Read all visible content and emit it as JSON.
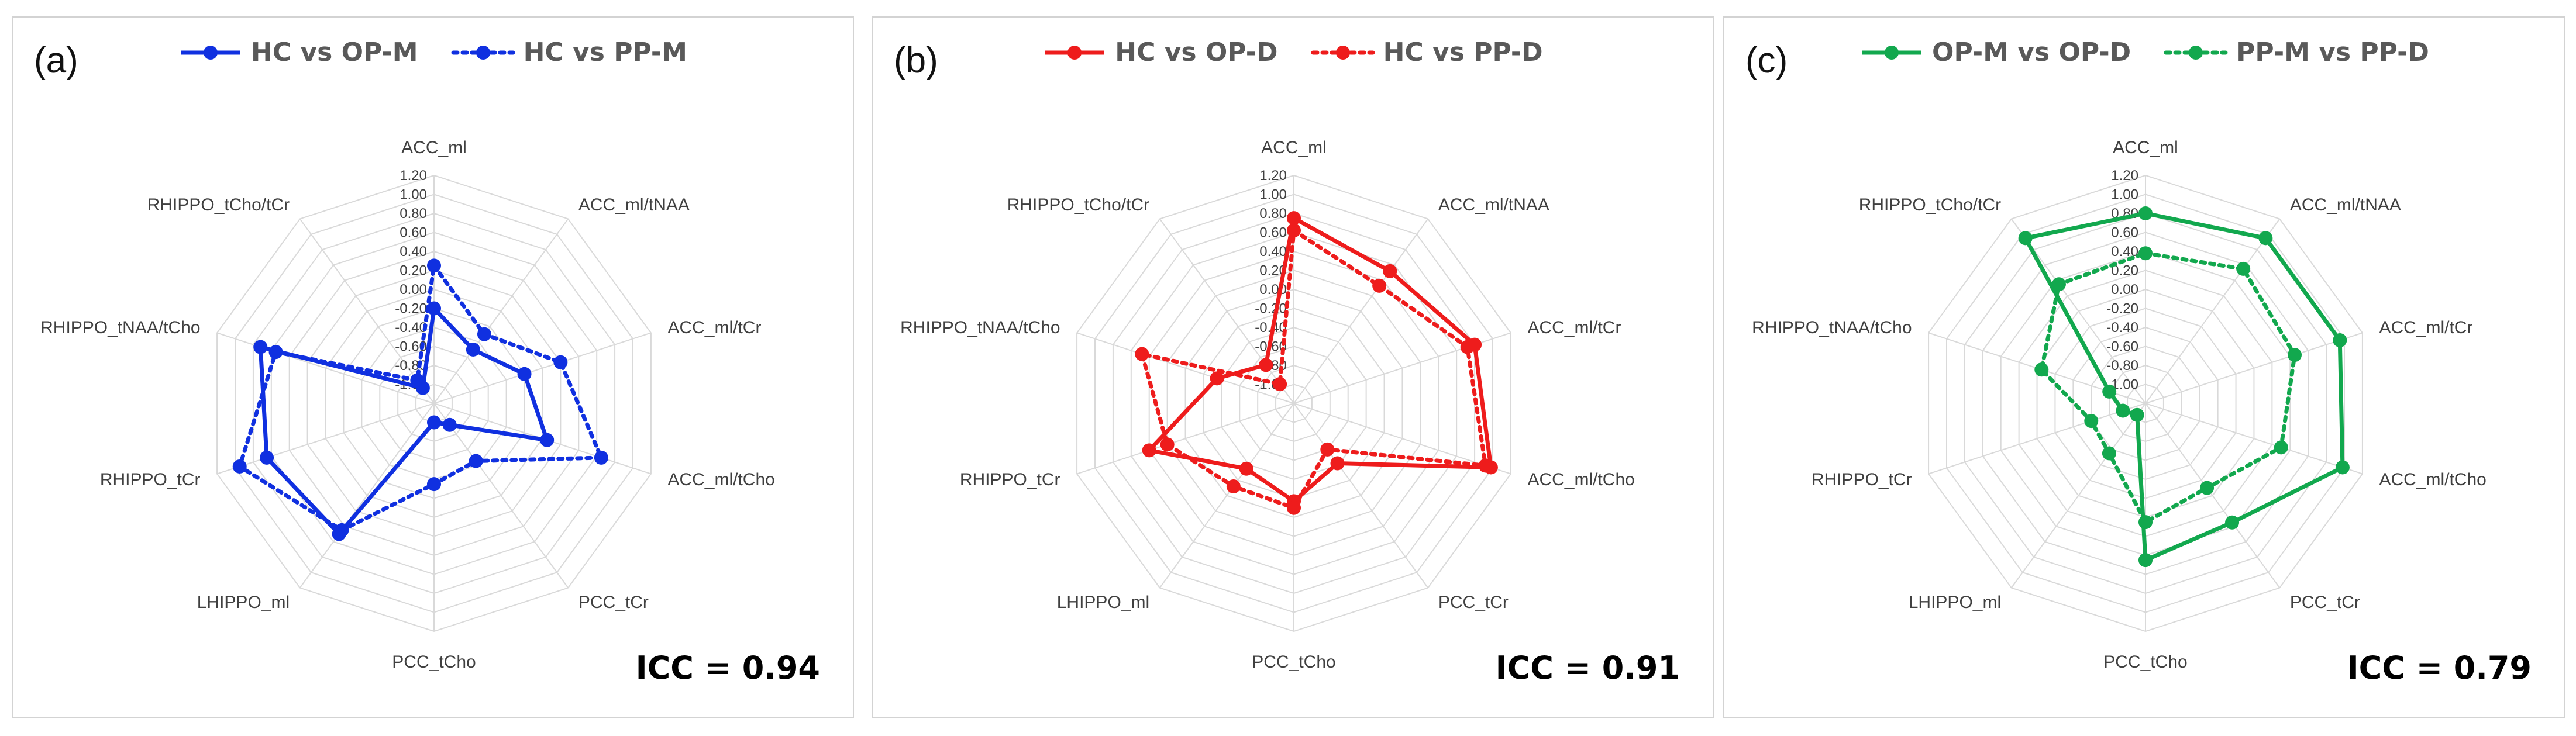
{
  "chart_data": [
    {
      "type": "radar",
      "panel_label": "(a)",
      "annotation": "ICC = 0.94",
      "categories": [
        "ACC_ml",
        "ACC_ml/tNAA",
        "ACC_ml/tCr",
        "ACC_ml/tCho",
        "PCC_tCr",
        "PCC_tCho",
        "LHIPPO_ml",
        "RHIPPO_tCr",
        "RHIPPO_tNAA/tCho",
        "RHIPPO_tCho/tCr"
      ],
      "r_ticks": [
        "1.20",
        "1.00",
        "0.80",
        "0.60",
        "0.40",
        "0.20",
        "0.00",
        "-0.20",
        "-0.40",
        "-0.60",
        "-0.80",
        "-1.00"
      ],
      "rlim": [
        -1.2,
        1.2
      ],
      "grid": true,
      "legend_position": "top",
      "series": [
        {
          "name": "HC vs OP-M",
          "style": "solid",
          "color": "#1030e0",
          "values": [
            -0.2,
            -0.5,
            -0.2,
            0.05,
            -0.92,
            -1.0,
            0.5,
            0.65,
            0.72,
            -1.0
          ]
        },
        {
          "name": "HC vs PP-M",
          "style": "dotted",
          "color": "#1030e0",
          "values": [
            0.25,
            -0.3,
            0.2,
            0.65,
            -0.45,
            -0.35,
            0.45,
            0.95,
            0.55,
            -0.9
          ]
        }
      ]
    },
    {
      "type": "radar",
      "panel_label": "(b)",
      "annotation": "ICC = 0.91",
      "categories": [
        "ACC_ml",
        "ACC_ml/tNAA",
        "ACC_ml/tCr",
        "ACC_ml/tCho",
        "PCC_tCr",
        "PCC_tCho",
        "LHIPPO_ml",
        "RHIPPO_tCr",
        "RHIPPO_tNAA/tCho",
        "RHIPPO_tCho/tCr"
      ],
      "r_ticks": [
        "1.20",
        "1.00",
        "0.80",
        "0.60",
        "0.40",
        "0.20",
        "0.00",
        "-0.20",
        "-0.40",
        "-0.60",
        "-0.80",
        "-1.00"
      ],
      "rlim": [
        -1.2,
        1.2
      ],
      "grid": true,
      "legend_position": "top",
      "series": [
        {
          "name": "HC vs OP-D",
          "style": "solid",
          "color": "#ee1c1c",
          "values": [
            0.75,
            0.52,
            0.8,
            0.98,
            -0.42,
            -0.17,
            -0.35,
            0.4,
            -0.35,
            -0.7
          ]
        },
        {
          "name": "HC vs PP-D",
          "style": "dotted",
          "color": "#ee1c1c",
          "values": [
            0.62,
            0.33,
            0.72,
            0.92,
            -0.6,
            -0.1,
            -0.12,
            0.2,
            0.48,
            -0.95
          ]
        }
      ]
    },
    {
      "type": "radar",
      "panel_label": "(c)",
      "annotation": "ICC = 0.79",
      "categories": [
        "ACC_ml",
        "ACC_ml/tNAA",
        "ACC_ml/tCr",
        "ACC_ml/tCho",
        "PCC_tCr",
        "PCC_tCho",
        "LHIPPO_ml",
        "RHIPPO_tCr",
        "RHIPPO_tNAA/tCho",
        "RHIPPO_tCho/tCr"
      ],
      "r_ticks": [
        "1.20",
        "1.00",
        "0.80",
        "0.60",
        "0.40",
        "0.20",
        "0.00",
        "-0.20",
        "-0.40",
        "-0.60",
        "-0.80",
        "-1.00"
      ],
      "rlim": [
        -1.2,
        1.2
      ],
      "grid": true,
      "legend_position": "top",
      "series": [
        {
          "name": "OP-M vs OP-D",
          "style": "solid",
          "color": "#12a84e",
          "values": [
            0.8,
            0.95,
            0.95,
            0.98,
            0.35,
            0.45,
            -1.05,
            -0.95,
            -0.8,
            0.95
          ]
        },
        {
          "name": "PP-M vs PP-D",
          "style": "dotted",
          "color": "#12a84e",
          "values": [
            0.38,
            0.55,
            0.45,
            0.3,
            -0.1,
            0.05,
            -0.55,
            -0.6,
            -0.05,
            0.35
          ]
        }
      ]
    }
  ]
}
